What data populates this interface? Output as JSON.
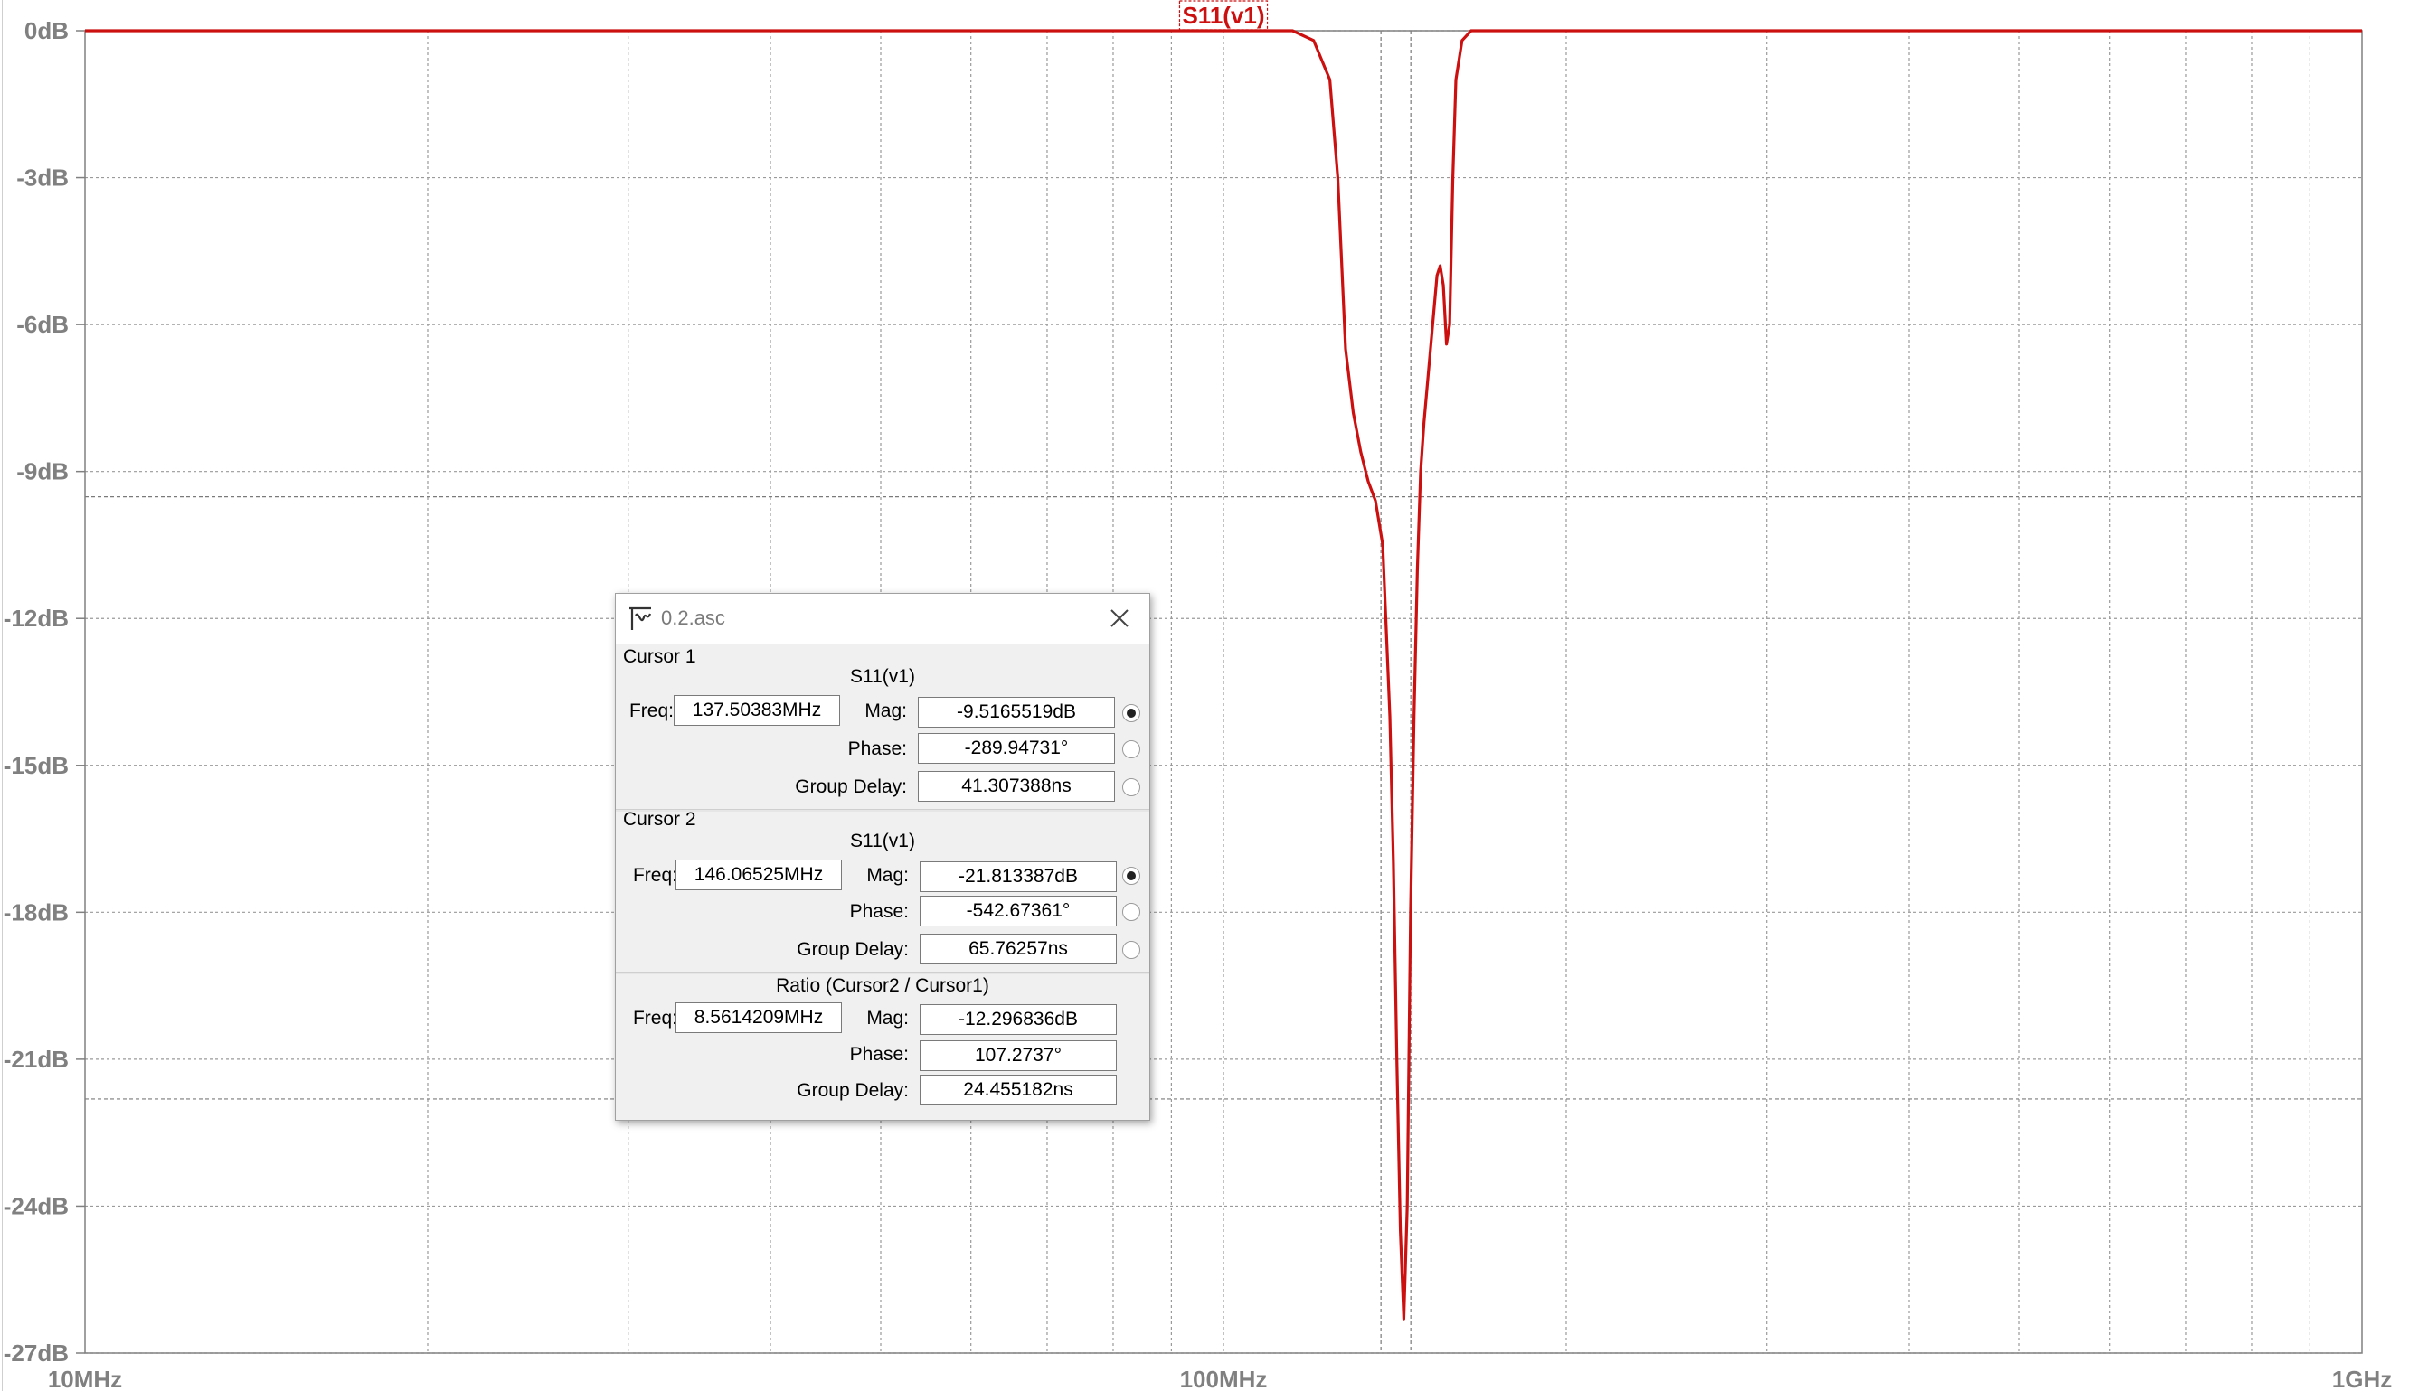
{
  "chart_data": {
    "type": "line",
    "title": "S11(v1)",
    "x_scale": "log",
    "xlim_hz": [
      10000000,
      1000000000
    ],
    "ylim_db": [
      -27,
      0
    ],
    "y_ticks": [
      "0dB",
      "-3dB",
      "-6dB",
      "-9dB",
      "-12dB",
      "-15dB",
      "-18dB",
      "-21dB",
      "-24dB",
      "-27dB"
    ],
    "x_ticks": [
      "10MHz",
      "100MHz",
      "1GHz"
    ],
    "grid": true,
    "series": [
      {
        "name": "S11(v1)",
        "color": "#cc1010",
        "x_mhz": [
          10,
          100,
          115,
          120,
          124,
          126,
          128,
          130,
          132,
          134,
          136,
          138,
          140,
          141,
          142,
          143,
          144,
          145,
          146,
          147,
          148,
          149,
          150,
          152,
          154,
          155,
          156,
          157,
          158,
          159,
          160,
          162,
          165,
          170,
          1000
        ],
        "y_db": [
          0,
          0,
          0,
          -0.2,
          -1.0,
          -3.0,
          -6.5,
          -7.8,
          -8.6,
          -9.2,
          -9.6,
          -10.5,
          -14,
          -17,
          -21,
          -24.5,
          -26.3,
          -24,
          -18,
          -14,
          -11,
          -9,
          -8,
          -6.5,
          -5.0,
          -4.8,
          -5.2,
          -6.4,
          -6.0,
          -3.0,
          -1.0,
          -0.2,
          0,
          0,
          0
        ]
      }
    ],
    "cursor_lines_mhz": [
      137.50383,
      146.06525
    ],
    "cursor_lines_db": [
      -9.5165519,
      -21.813387
    ]
  },
  "dialog": {
    "title": "0.2.asc",
    "cursor1": {
      "label": "Cursor 1",
      "trace": "S11(v1)",
      "freq_label": "Freq:",
      "freq": "137.50383MHz",
      "mag_label": "Mag:",
      "mag": "-9.5165519dB",
      "phase_label": "Phase:",
      "phase": "-289.94731°",
      "gd_label": "Group Delay:",
      "gd": "41.307388ns"
    },
    "cursor2": {
      "label": "Cursor 2",
      "trace": "S11(v1)",
      "freq_label": "Freq:",
      "freq": "146.06525MHz",
      "mag_label": "Mag:",
      "mag": "-21.813387dB",
      "phase_label": "Phase:",
      "phase": "-542.67361°",
      "gd_label": "Group Delay:",
      "gd": "65.76257ns"
    },
    "ratio": {
      "label": "Ratio (Cursor2 / Cursor1)",
      "freq_label": "Freq:",
      "freq": "8.5614209MHz",
      "mag_label": "Mag:",
      "mag": "-12.296836dB",
      "phase_label": "Phase:",
      "phase": "107.2737°",
      "gd_label": "Group Delay:",
      "gd": "24.455182ns"
    }
  }
}
